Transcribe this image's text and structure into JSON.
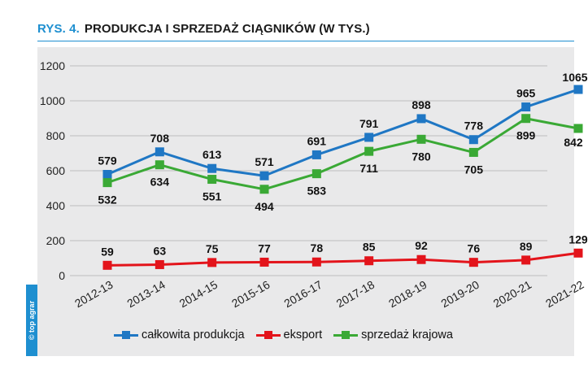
{
  "header": {
    "prefix": "RYS. 4.",
    "title": "PRODUKCJA I SPRZEDAŻ CIĄGNIKÓW (W TYS.)"
  },
  "watermark": "© top agrar",
  "colors": {
    "accent": "#1e8fd0",
    "panel_bg": "#e9e9ea",
    "series_total": "#1f77c4",
    "series_export": "#e3141b",
    "series_domestic": "#3aa935"
  },
  "chart_data": {
    "type": "line",
    "title": "PRODUKCJA I SPRZEDAŻ CIĄGNIKÓW (W TYS.)",
    "xlabel": "",
    "ylabel": "",
    "ylim": [
      0,
      1200
    ],
    "yticks": [
      0,
      200,
      400,
      600,
      800,
      1000,
      1200
    ],
    "grid": true,
    "legend_position": "bottom",
    "categories": [
      "2012-13",
      "2013-14",
      "2014-15",
      "2015-16",
      "2016-17",
      "2017-18",
      "2018-19",
      "2019-20",
      "2020-21",
      "2021-22"
    ],
    "series": [
      {
        "name": "całkowita produkcja",
        "color": "#1f77c4",
        "values": [
          579,
          708,
          613,
          571,
          691,
          791,
          898,
          778,
          965,
          1065
        ]
      },
      {
        "name": "eksport",
        "color": "#e3141b",
        "values": [
          59,
          63,
          75,
          77,
          78,
          85,
          92,
          76,
          89,
          129
        ]
      },
      {
        "name": "sprzedaż krajowa",
        "color": "#3aa935",
        "values": [
          532,
          634,
          551,
          494,
          583,
          711,
          780,
          705,
          899,
          842
        ]
      }
    ]
  }
}
